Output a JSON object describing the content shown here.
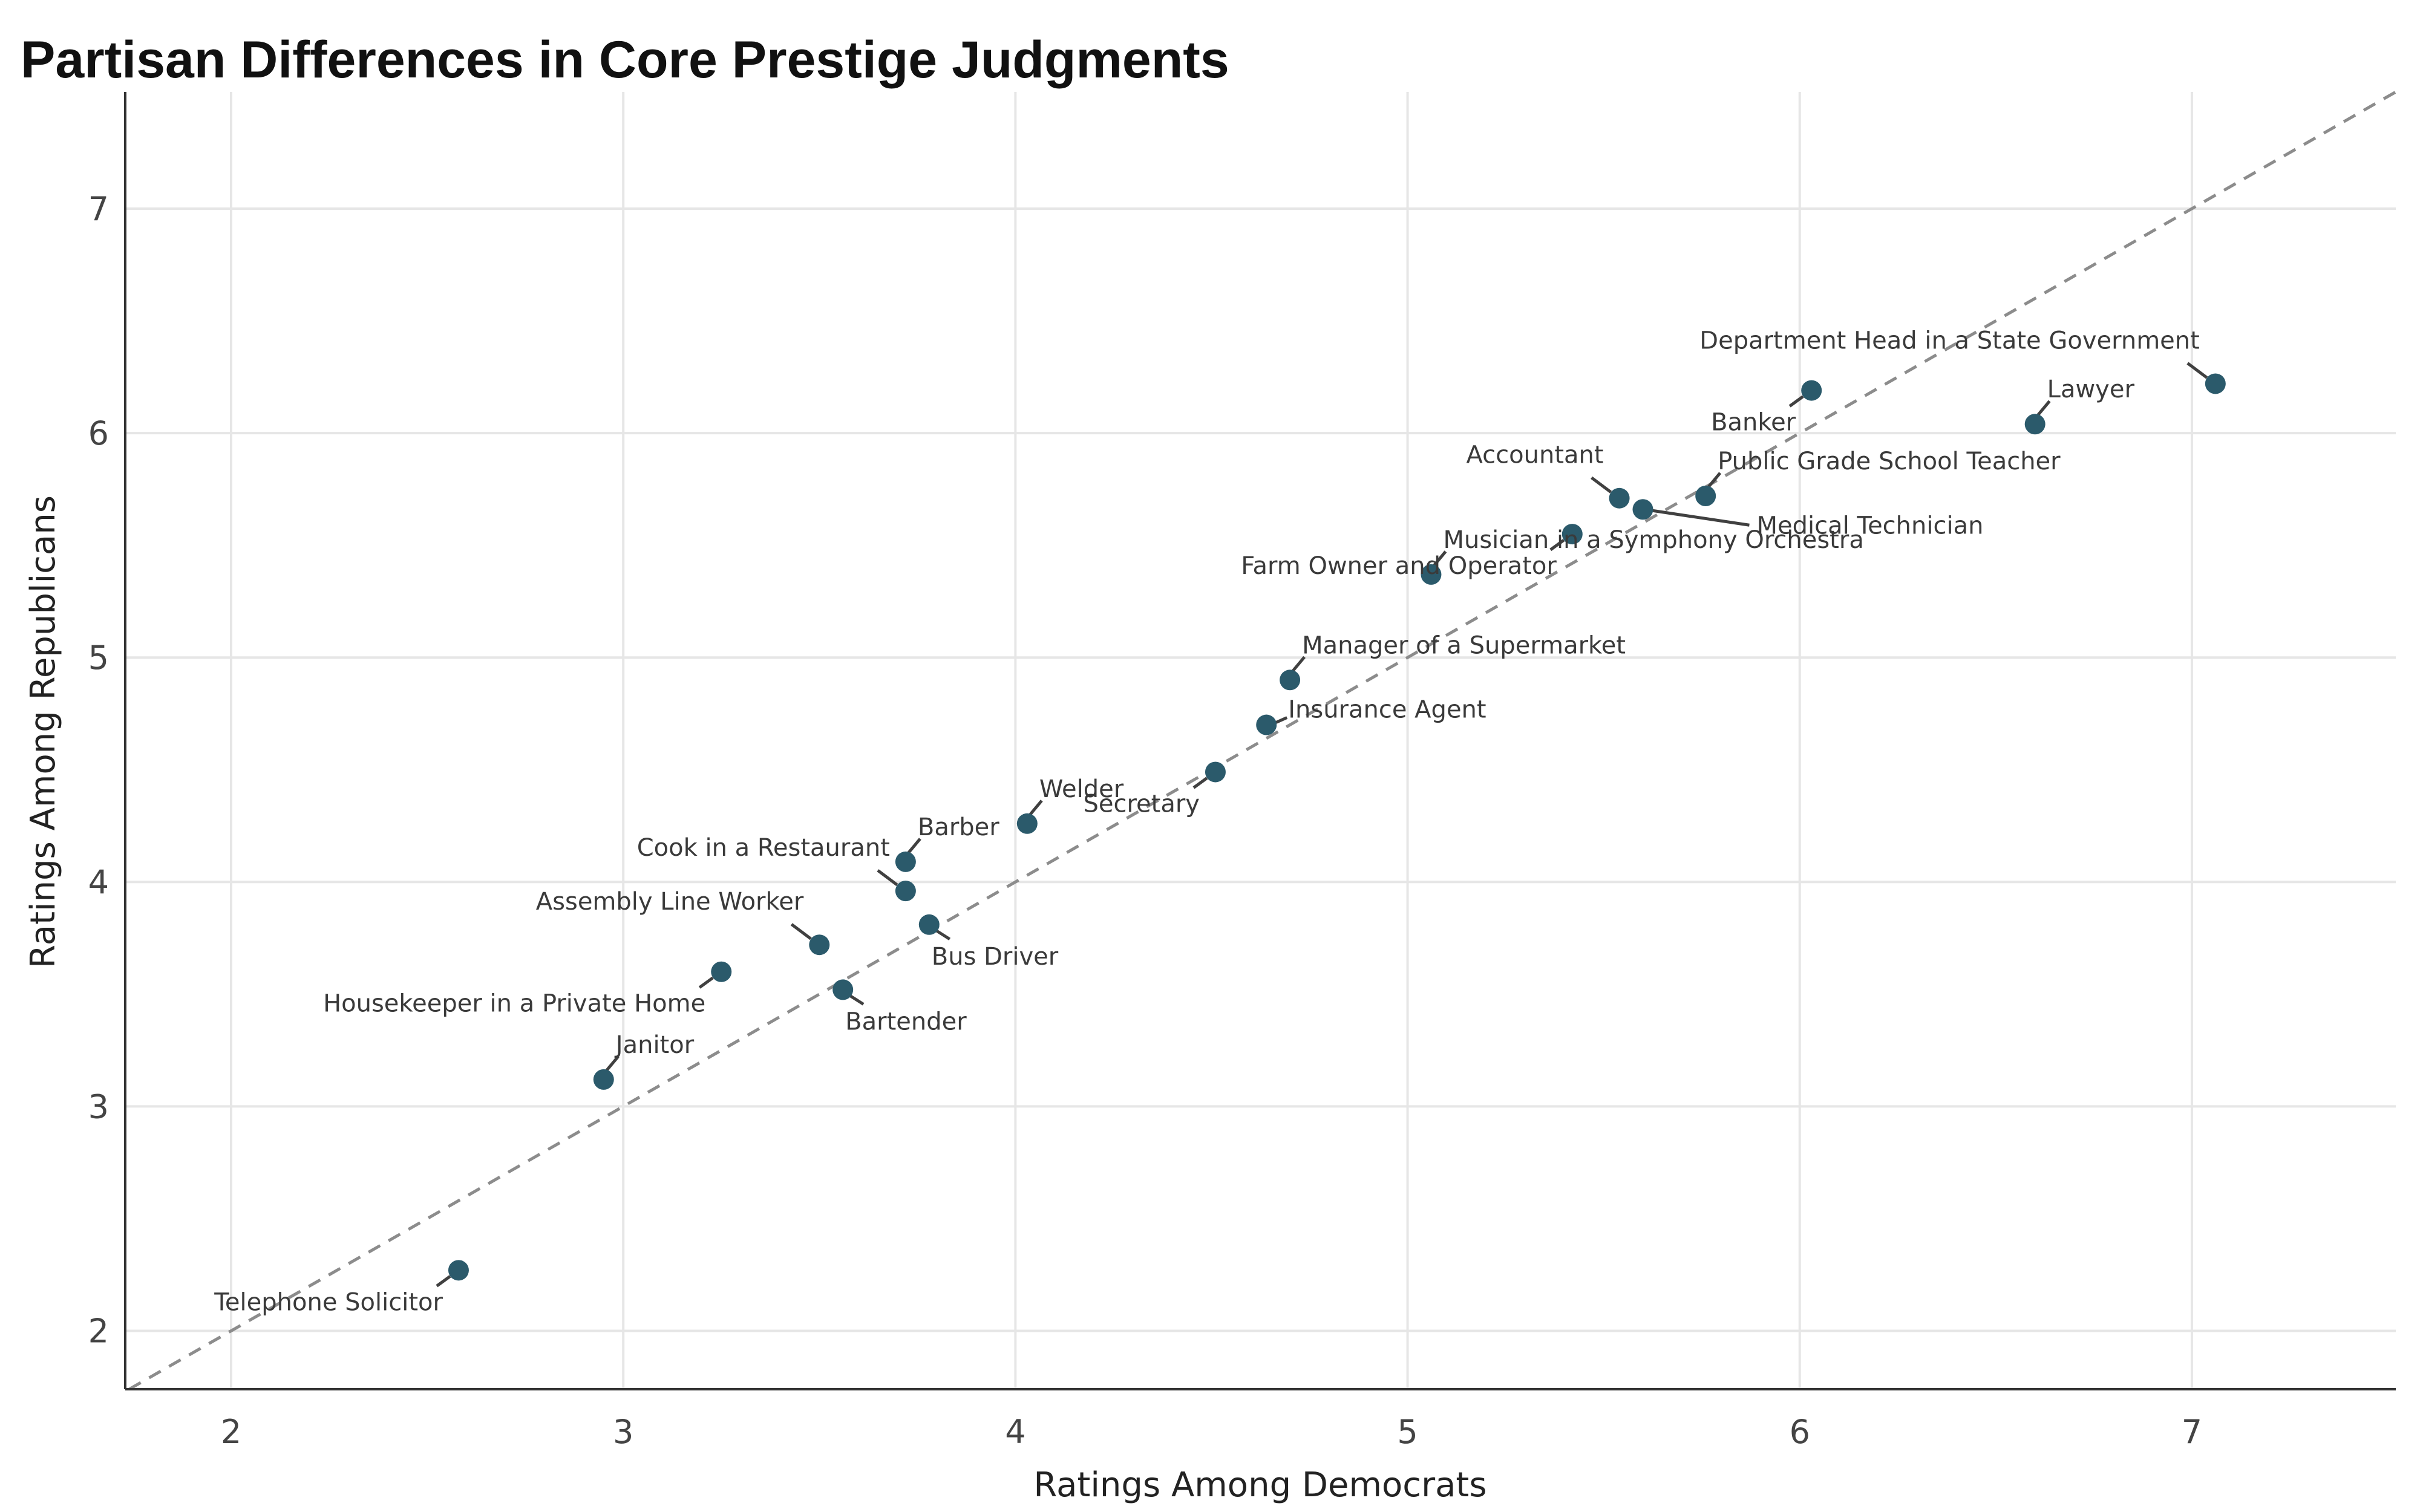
{
  "chart_data": {
    "type": "scatter",
    "title": "Partisan Differences in Core Prestige Judgments",
    "xlabel": "Ratings Among Democrats",
    "ylabel": "Ratings Among Republicans",
    "xlim": [
      1.73,
      7.52
    ],
    "ylim": [
      1.74,
      7.52
    ],
    "x_ticks": [
      2,
      3,
      4,
      5,
      6,
      7
    ],
    "y_ticks": [
      2,
      3,
      4,
      5,
      6,
      7
    ],
    "grid": true,
    "legend": "none",
    "reference_line": "y = x",
    "point_color": "#2b5a6b",
    "points": [
      {
        "label": "Department Head in a State Government",
        "x": 7.06,
        "y": 6.22,
        "lpos": "above-left"
      },
      {
        "label": "Lawyer",
        "x": 6.6,
        "y": 6.04,
        "lpos": "above-right"
      },
      {
        "label": "Banker",
        "x": 6.03,
        "y": 6.19,
        "lpos": "below-left"
      },
      {
        "label": "Public Grade School Teacher",
        "x": 5.76,
        "y": 5.72,
        "lpos": "above-right"
      },
      {
        "label": "Accountant",
        "x": 5.54,
        "y": 5.71,
        "lpos": "above-left"
      },
      {
        "label": "Medical Technician",
        "x": 5.6,
        "y": 5.66,
        "lpos": "far-right"
      },
      {
        "label": "Farm Owner and Operator",
        "x": 5.42,
        "y": 5.55,
        "lpos": "below-left"
      },
      {
        "label": "Musician in a Symphony Orchestra",
        "x": 5.06,
        "y": 5.37,
        "lpos": "above-right"
      },
      {
        "label": "Manager of a Supermarket",
        "x": 4.7,
        "y": 4.9,
        "lpos": "above-right"
      },
      {
        "label": "Insurance Agent",
        "x": 4.64,
        "y": 4.7,
        "lpos": "right"
      },
      {
        "label": "Secretary",
        "x": 4.51,
        "y": 4.49,
        "lpos": "below-left"
      },
      {
        "label": "Welder",
        "x": 4.03,
        "y": 4.26,
        "lpos": "above-right"
      },
      {
        "label": "Barber",
        "x": 3.72,
        "y": 4.09,
        "lpos": "above-right"
      },
      {
        "label": "Cook in a Restaurant",
        "x": 3.72,
        "y": 3.96,
        "lpos": "above-left"
      },
      {
        "label": "Bus Driver",
        "x": 3.78,
        "y": 3.81,
        "lpos": "below-right"
      },
      {
        "label": "Assembly Line Worker",
        "x": 3.5,
        "y": 3.72,
        "lpos": "above-left"
      },
      {
        "label": "Housekeeper in a Private Home",
        "x": 3.25,
        "y": 3.6,
        "lpos": "below-left"
      },
      {
        "label": "Bartender",
        "x": 3.56,
        "y": 3.52,
        "lpos": "below-right"
      },
      {
        "label": "Janitor",
        "x": 2.95,
        "y": 3.12,
        "lpos": "above-right"
      },
      {
        "label": "Telephone Solicitor",
        "x": 2.58,
        "y": 2.27,
        "lpos": "below-left"
      }
    ]
  }
}
